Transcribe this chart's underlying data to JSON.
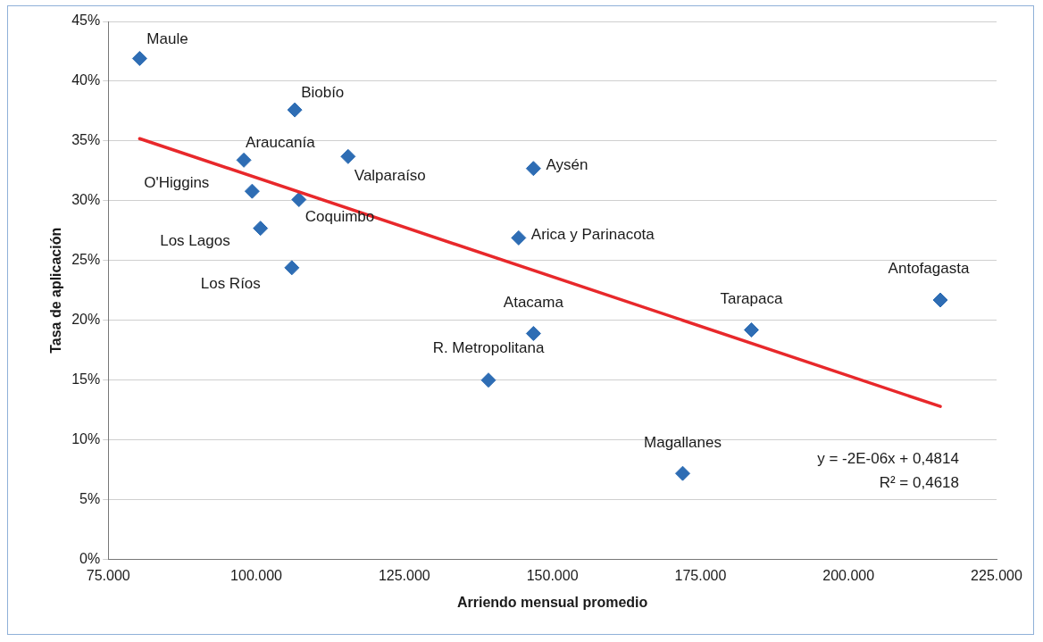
{
  "chart_data": {
    "type": "scatter",
    "xlabel": "Arriendo mensual promedio",
    "ylabel": "Tasa de aplicación",
    "x": [
      80300,
      106500,
      97900,
      115500,
      146800,
      99300,
      107200,
      100700,
      144300,
      106000,
      215500,
      183600,
      146800,
      139200,
      172000
    ],
    "series": [
      {
        "color": "#2e6db4",
        "marker": "diamond",
        "values": [
          41.9,
          37.6,
          33.4,
          33.7,
          32.7,
          30.8,
          30.1,
          27.7,
          26.9,
          24.4,
          21.7,
          19.2,
          18.9,
          15.0,
          7.2
        ]
      },
      {
        "type": "line",
        "color": "#e8282b",
        "x": [
          80300,
          215500
        ],
        "values": [
          35.2,
          12.8
        ],
        "marker": "none"
      }
    ],
    "xlim": [
      75000,
      225000
    ],
    "xticks": [
      {
        "value": 75000,
        "label": "75.000"
      },
      {
        "value": 100000,
        "label": "100.000"
      },
      {
        "value": 125000,
        "label": "125.000"
      },
      {
        "value": 150000,
        "label": "150.000"
      },
      {
        "value": 175000,
        "label": "175.000"
      },
      {
        "value": 200000,
        "label": "200.000"
      },
      {
        "value": 225000,
        "label": "225.000"
      }
    ],
    "ylim": [
      0,
      45
    ],
    "yticks": [
      {
        "value": 0,
        "label": "0%"
      },
      {
        "value": 5,
        "label": "5%"
      },
      {
        "value": 10,
        "label": "10%"
      },
      {
        "value": 15,
        "label": "15%"
      },
      {
        "value": 20,
        "label": "20%"
      },
      {
        "value": 25,
        "label": "25%"
      },
      {
        "value": 30,
        "label": "30%"
      },
      {
        "value": 35,
        "label": "35%"
      },
      {
        "value": 40,
        "label": "40%"
      },
      {
        "value": 45,
        "label": "45%"
      }
    ],
    "grid": "y",
    "legend": false,
    "annotations": [
      {
        "text": "Maule",
        "x": 80300,
        "y": 41.9
      },
      {
        "text": "Biobío",
        "x": 106500,
        "y": 37.6
      },
      {
        "text": "Araucanía",
        "x": 97900,
        "y": 33.4
      },
      {
        "text": "Valparaíso",
        "x": 115500,
        "y": 33.7
      },
      {
        "text": "Aysén",
        "x": 146800,
        "y": 32.7
      },
      {
        "text": "O'Higgins",
        "x": 99300,
        "y": 30.8
      },
      {
        "text": "Coquimbo",
        "x": 107200,
        "y": 30.1
      },
      {
        "text": "Los Lagos",
        "x": 100700,
        "y": 27.7
      },
      {
        "text": "Arica y Parinacota",
        "x": 144300,
        "y": 26.9
      },
      {
        "text": "Los Ríos",
        "x": 106000,
        "y": 24.4
      },
      {
        "text": "Antofagasta",
        "x": 215500,
        "y": 21.7
      },
      {
        "text": "Tarapaca",
        "x": 183600,
        "y": 19.2
      },
      {
        "text": "Atacama",
        "x": 146800,
        "y": 18.9
      },
      {
        "text": "R. Metropolitana",
        "x": 139200,
        "y": 15.0
      },
      {
        "text": "Magallanes",
        "x": 172000,
        "y": 7.2
      },
      "y = -2E-06x + 0,4814",
      "R² = 0,4618"
    ]
  }
}
